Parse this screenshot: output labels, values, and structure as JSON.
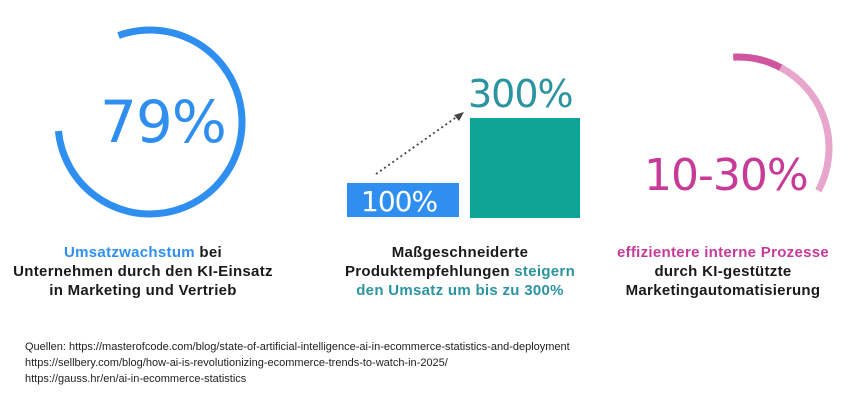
{
  "stat1": {
    "value": "79%",
    "caption_highlight": "Umsatzwachstum",
    "caption_rest_line1": " bei",
    "caption_line2": "Unternehmen durch den KI-Einsatz",
    "caption_line3": "in Marketing und Vertrieb",
    "ring_fraction": 0.79
  },
  "stat2": {
    "label_base": "100%",
    "label_top": "300%",
    "base_value": 100,
    "top_value": 300,
    "caption_line1": "Maßgeschneiderte",
    "caption_line2_a": "Produktempfehlungen ",
    "caption_line2_b": "steigern",
    "caption_line3": "den Umsatz um bis zu 300%"
  },
  "stat3": {
    "value": "10-30%",
    "caption_line1": "effizientere interne Prozesse",
    "caption_line2": "durch KI-gestützte",
    "caption_line3": "Marketingautomatisierung",
    "range_low": 0.1,
    "range_high": 0.3
  },
  "sources": {
    "line1": "Quellen: https://masterofcode.com/blog/state-of-artificial-intelligence-ai-in-ecommerce-statistics-and-deployment",
    "line2": "https://sellbery.com/blog/how-ai-is-revolutionizing-ecommerce-trends-to-watch-in-2025/",
    "line3": "https://gauss.hr/en/ai-in-ecommerce-statistics"
  },
  "colors": {
    "blue": "#2e8ff0",
    "teal": "#0ea597",
    "tealText": "#2b94a1",
    "magenta": "#c83a97",
    "pinkLight": "#e8a6cc"
  }
}
